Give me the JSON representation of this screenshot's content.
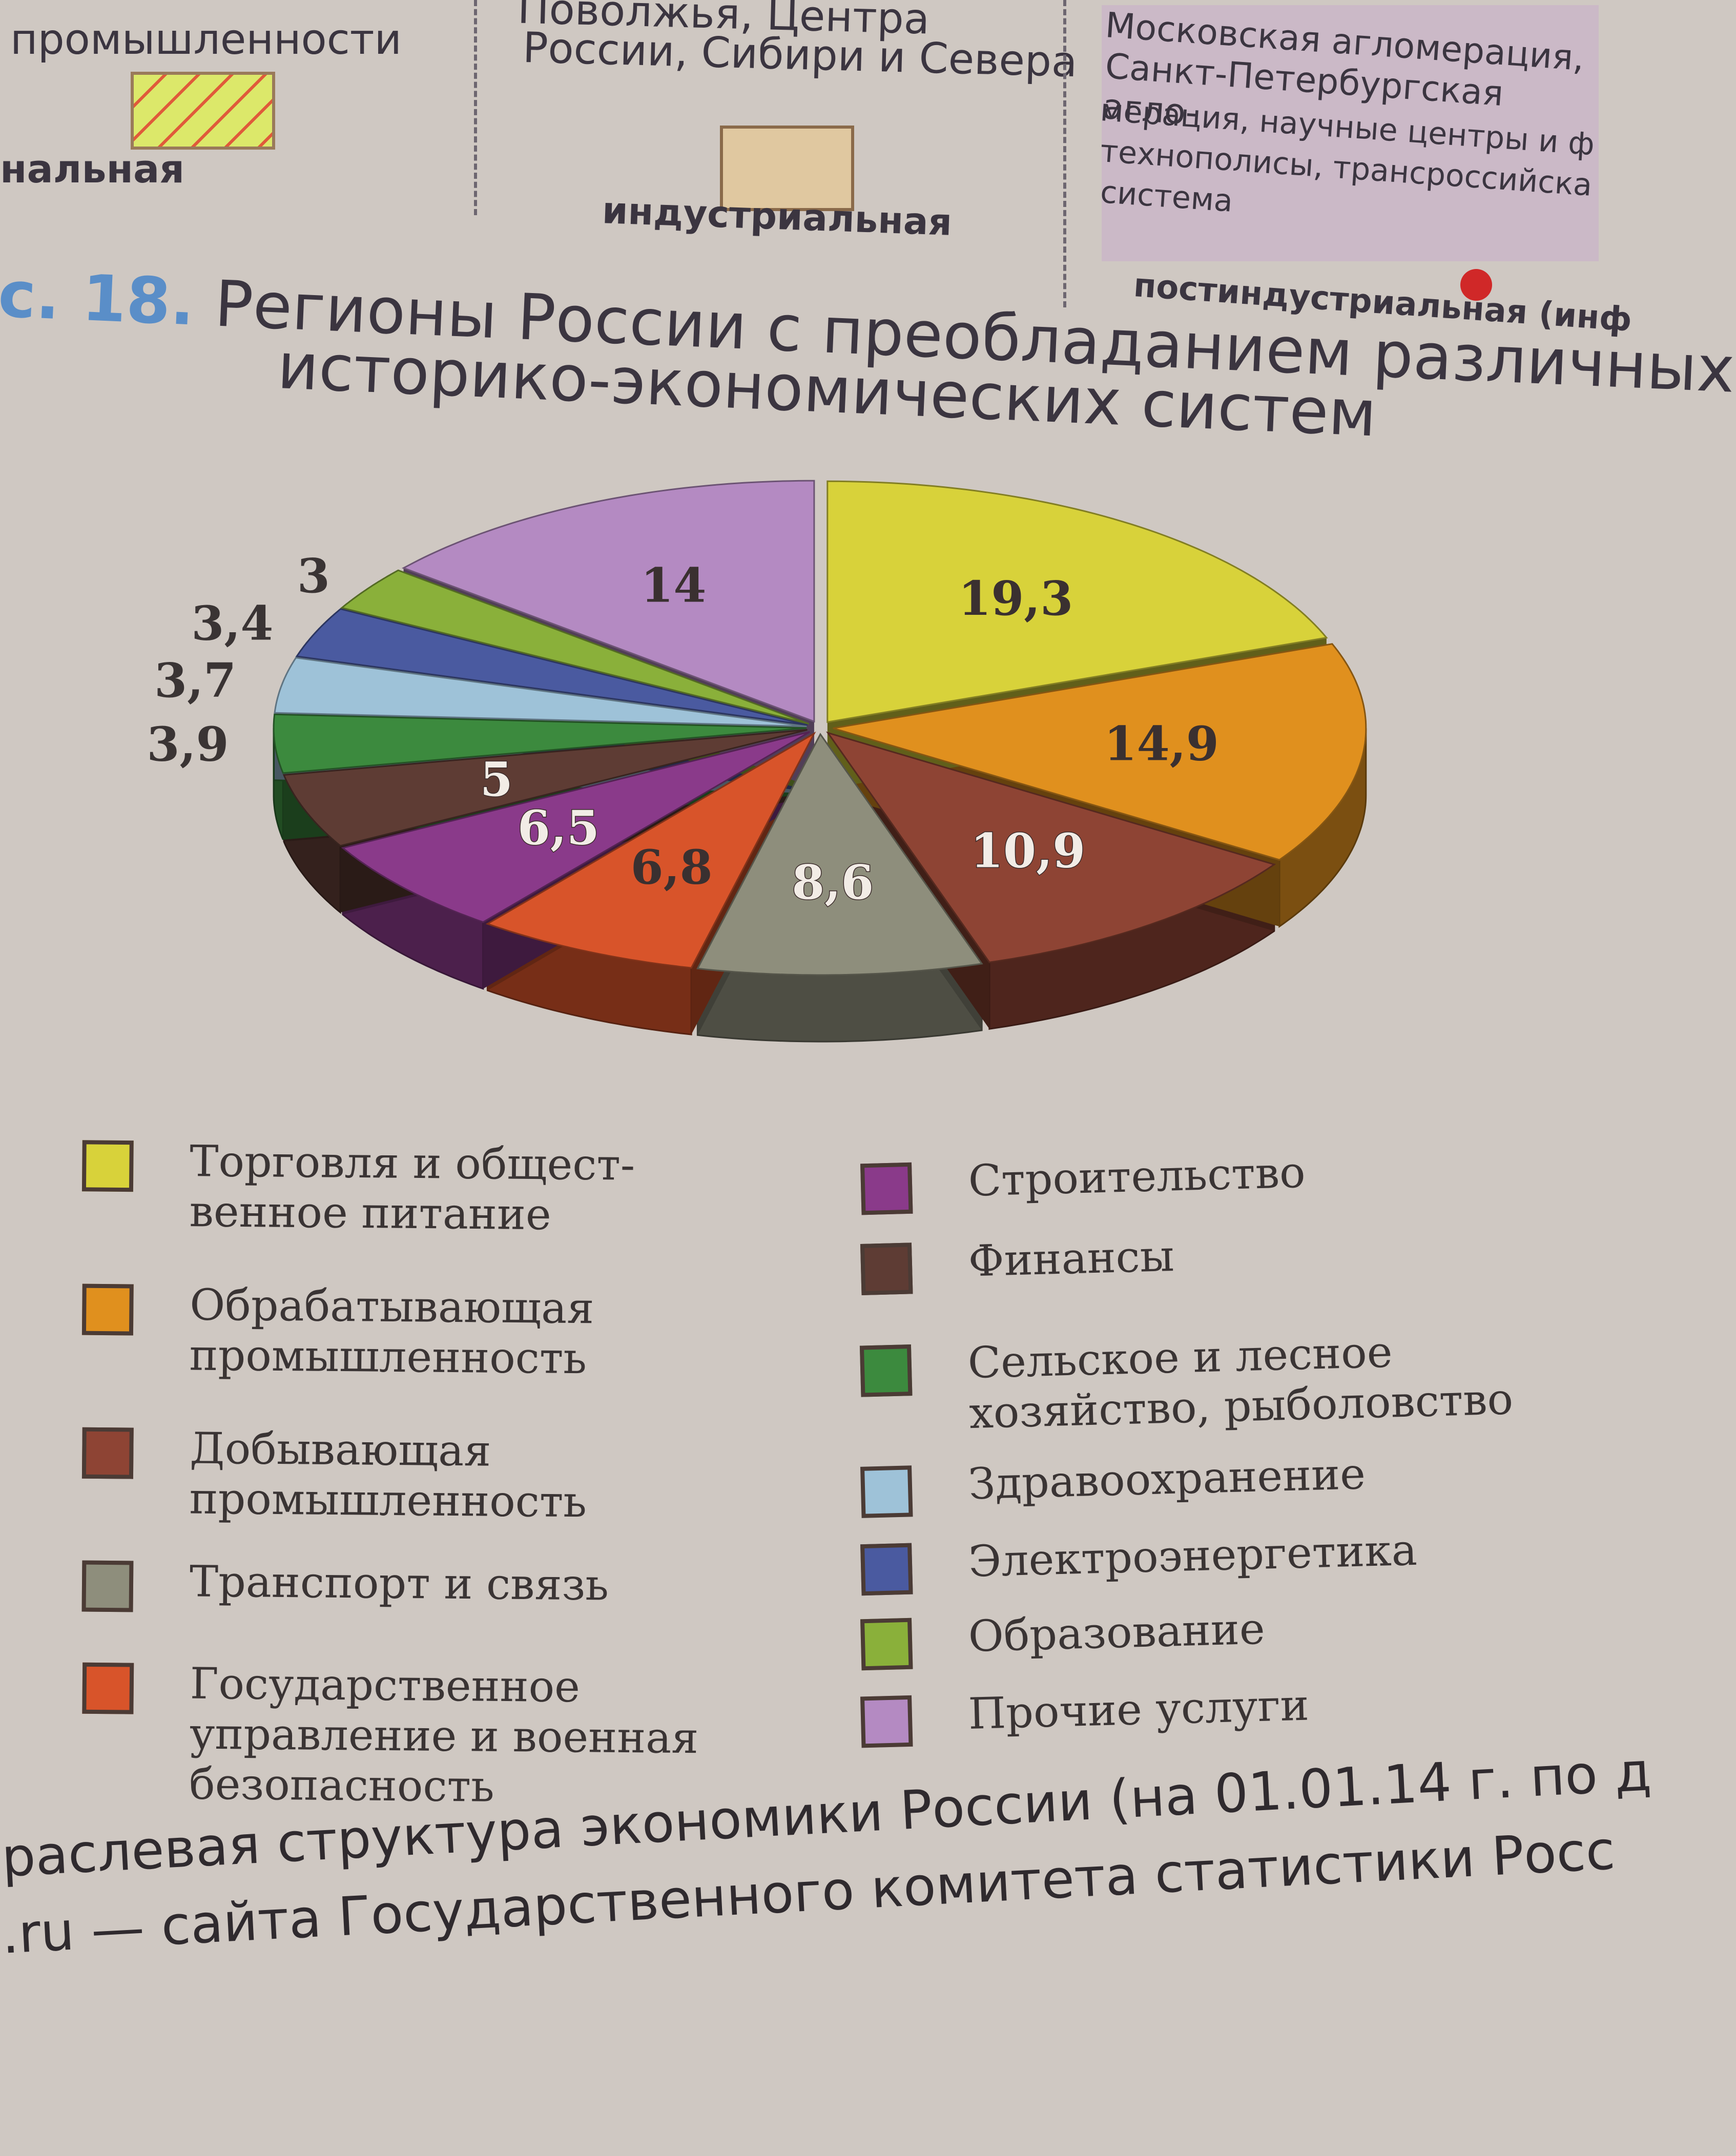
{
  "top_fragment": {
    "col1_line": "промышленности",
    "col1_label": "нальная",
    "col2_line1": "Поволжья, Центра",
    "col2_line2": "России, Сибири и Севера",
    "col2_label": "индустриальная",
    "col3_lines": [
      "Московская агломерация,",
      "Санкт-Петербургская агло-",
      "мерация, научные центры и ф",
      "технополисы, трансроссийска",
      "система"
    ],
    "col3_label": "постиндустриальная (инф",
    "swatch_colors": {
      "hatched": "#dce86a",
      "hatch_line": "#e05a3a",
      "industrial": "#e0c8a0",
      "dot": "#d02828"
    }
  },
  "figure": {
    "number": "с. 18.",
    "title_line1": "Регионы России с преобладанием различных",
    "title_line2": "историко-экономических систем"
  },
  "chart_data": {
    "type": "pie",
    "style": "3d-exploded",
    "values": [
      19.3,
      14.9,
      10.9,
      8.6,
      6.8,
      6.5,
      5,
      3.9,
      3.7,
      3.4,
      3,
      14
    ],
    "labels": [
      "19,3",
      "14,9",
      "10,9",
      "8,6",
      "6,8",
      "6,5",
      "5",
      "3,9",
      "3,7",
      "3,4",
      "3",
      "14"
    ],
    "categories": [
      "Торговля и общественное питание",
      "Обрабатывающая промышленность",
      "Добывающая промышленность",
      "Транспорт и связь",
      "Государственное управление и военная безопасность",
      "Строительство",
      "Финансы",
      "Сельское и лесное хозяйство, рыболовство",
      "Здравоохранение",
      "Электроэнергетика",
      "Образование",
      "Прочие услуги"
    ],
    "colors": [
      "#d8d23a",
      "#e0901e",
      "#8e4434",
      "#8e8e7c",
      "#d8542a",
      "#8a3a8a",
      "#5e3c34",
      "#3c8a3e",
      "#9ec2d8",
      "#4a5aa0",
      "#8ab03a",
      "#b48ac2"
    ]
  },
  "legend": {
    "items": [
      {
        "lines": [
          "Торговля и общест-",
          "венное питание"
        ],
        "color": "#d8d23a"
      },
      {
        "lines": [
          "Обрабатывающая",
          "промышленность"
        ],
        "color": "#e0901e"
      },
      {
        "lines": [
          "Добывающая",
          "промышленность"
        ],
        "color": "#8e4434"
      },
      {
        "lines": [
          "Транспорт и связь"
        ],
        "color": "#8e8e7c"
      },
      {
        "lines": [
          "Государственное",
          "управление и военная",
          "безопасность"
        ],
        "color": "#d8542a"
      },
      {
        "lines": [
          "Строительство"
        ],
        "color": "#8a3a8a"
      },
      {
        "lines": [
          "Финансы"
        ],
        "color": "#5e3c34"
      },
      {
        "lines": [
          "Сельское и лесное",
          "хозяйство, рыболовство"
        ],
        "color": "#3c8a3e"
      },
      {
        "lines": [
          "Здравоохранение"
        ],
        "color": "#9ec2d8"
      },
      {
        "lines": [
          "Электроэнергетика"
        ],
        "color": "#4a5aa0"
      },
      {
        "lines": [
          "Образование"
        ],
        "color": "#8ab03a"
      },
      {
        "lines": [
          "Прочие услуги"
        ],
        "color": "#b48ac2"
      }
    ]
  },
  "bottom_caption": {
    "line1": "раслевая структура экономики России (на 01.01.14 г. по д",
    "line2": ".ru — сайта Государственного комитета статистики Росс"
  }
}
